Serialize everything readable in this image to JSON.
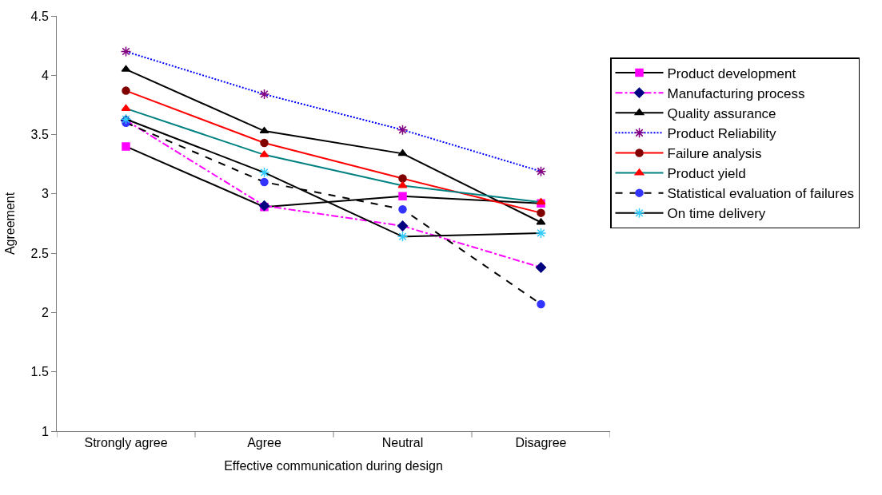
{
  "chart_data": {
    "type": "line",
    "xlabel": "Effective communication during design",
    "ylabel": "Agreement",
    "categories": [
      "Strongly agree",
      "Agree",
      "Neutral",
      "Disagree"
    ],
    "ylim": [
      1,
      4.5
    ],
    "yticks": [
      1,
      {
        "value": 1.5,
        "label": "1.5"
      },
      2,
      {
        "value": 2.5,
        "label": "2.5"
      },
      3,
      {
        "value": 3.5,
        "label": "3.5"
      },
      4,
      {
        "value": 4.5,
        "label": "4.5"
      }
    ],
    "legend": "right",
    "series": [
      {
        "name": "Product development",
        "color": "#000000",
        "colors": [
          "#ff00ff",
          "#ff00ff",
          "#ff00ff",
          "#ff00ff"
        ],
        "marker": "square",
        "line_style": "solid",
        "values": [
          3.4,
          2.89,
          2.98,
          2.92
        ]
      },
      {
        "name": "Manufacturing process",
        "color": "#ff00ff",
        "colors": [
          "#000080",
          "#000080",
          "#000080",
          "#000080"
        ],
        "marker": "diamond",
        "line_style": "dashdot",
        "values": [
          3.62,
          2.9,
          2.73,
          2.38
        ]
      },
      {
        "name": "Quality assurance",
        "color": "#000000",
        "colors": [
          "#000000",
          "#000000",
          "#000000",
          "#000000"
        ],
        "marker": "triangle",
        "line_style": "solid",
        "values": [
          4.05,
          3.53,
          3.34,
          2.76
        ]
      },
      {
        "name": "Product Reliability",
        "color": "#0000ff",
        "colors": [
          "#800080",
          "#800080",
          "#800080",
          "#800080"
        ],
        "marker": "cross",
        "line_style": "dotted",
        "values": [
          4.2,
          3.84,
          3.54,
          3.19
        ]
      },
      {
        "name": "Failure analysis",
        "color": "#ff0000",
        "colors": [
          "#800000",
          "#800000",
          "#800000",
          "#800000"
        ],
        "marker": "circle",
        "line_style": "solid",
        "values": [
          3.87,
          3.43,
          3.13,
          2.84
        ]
      },
      {
        "name": "Product yield",
        "color": "#008080",
        "colors": [
          "#ff0000",
          "#ff0000",
          "#ff0000",
          "#ff0000"
        ],
        "marker": "triangle",
        "line_style": "solid",
        "values": [
          3.72,
          3.33,
          3.07,
          2.93
        ]
      },
      {
        "name": "Statistical evaluation of failures",
        "color": "#000000",
        "colors": [
          "#3333ff",
          "#3333ff",
          "#3333ff",
          "#3333ff"
        ],
        "marker": "circle",
        "line_style": "dashed",
        "values": [
          3.6,
          3.1,
          2.87,
          2.07
        ]
      },
      {
        "name": "On time delivery",
        "color": "#000000",
        "colors": [
          "#33ccff",
          "#33ccff",
          "#33ccff",
          "#33ccff"
        ],
        "marker": "cross",
        "line_style": "solid",
        "values": [
          3.63,
          3.18,
          2.64,
          2.67
        ]
      }
    ]
  }
}
